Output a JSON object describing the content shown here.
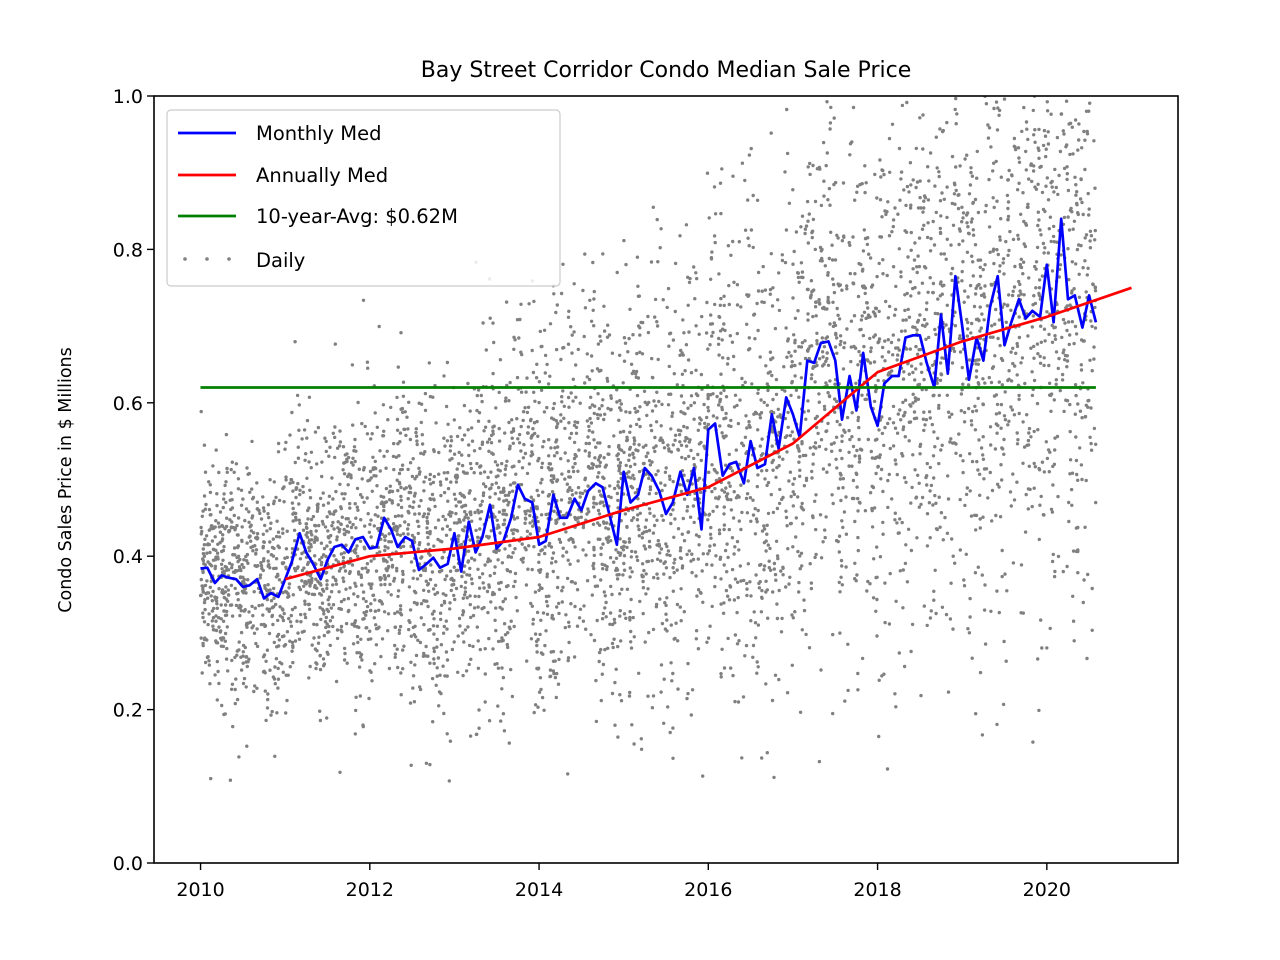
{
  "chart_data": {
    "type": "line",
    "title": "Bay Street Corridor Condo Median Sale Price",
    "xlabel": "",
    "ylabel": "Condo Sales Price in $ Millions",
    "xlim": [
      2009.45,
      2021.55
    ],
    "ylim": [
      0.0,
      1.0
    ],
    "x_ticks": [
      "2010",
      "2012",
      "2014",
      "2016",
      "2018",
      "2020"
    ],
    "y_ticks": [
      "0.0",
      "0.2",
      "0.4",
      "0.6",
      "0.8",
      "1.0"
    ],
    "grid": false,
    "legend_position": "upper-left",
    "colors": {
      "monthly": "#0000ff",
      "annual": "#ff0000",
      "average": "#008000",
      "daily": "#808080"
    },
    "legend": [
      {
        "label": "Monthly Med",
        "color": "#0000ff",
        "kind": "line"
      },
      {
        "label": "Annually Med",
        "color": "#ff0000",
        "kind": "line"
      },
      {
        "label": "10-year-Avg: $0.62M",
        "color": "#008000",
        "kind": "line"
      },
      {
        "label": "Daily",
        "color": "#808080",
        "kind": "dots"
      }
    ],
    "series": [
      {
        "name": "Monthly Med",
        "x": [
          2010.0,
          2010.08,
          2010.17,
          2010.25,
          2010.33,
          2010.42,
          2010.5,
          2010.58,
          2010.67,
          2010.75,
          2010.83,
          2010.92,
          2011.0,
          2011.08,
          2011.17,
          2011.25,
          2011.33,
          2011.42,
          2011.5,
          2011.58,
          2011.67,
          2011.75,
          2011.83,
          2011.92,
          2012.0,
          2012.08,
          2012.17,
          2012.25,
          2012.33,
          2012.42,
          2012.5,
          2012.58,
          2012.67,
          2012.75,
          2012.83,
          2012.92,
          2013.0,
          2013.08,
          2013.17,
          2013.25,
          2013.33,
          2013.42,
          2013.5,
          2013.58,
          2013.67,
          2013.75,
          2013.83,
          2013.92,
          2014.0,
          2014.08,
          2014.17,
          2014.25,
          2014.33,
          2014.42,
          2014.5,
          2014.58,
          2014.67,
          2014.75,
          2014.83,
          2014.92,
          2015.0,
          2015.08,
          2015.17,
          2015.25,
          2015.33,
          2015.42,
          2015.5,
          2015.58,
          2015.67,
          2015.75,
          2015.83,
          2015.92,
          2016.0,
          2016.08,
          2016.17,
          2016.25,
          2016.33,
          2016.42,
          2016.5,
          2016.58,
          2016.67,
          2016.75,
          2016.83,
          2016.92,
          2017.0,
          2017.08,
          2017.17,
          2017.25,
          2017.33,
          2017.42,
          2017.5,
          2017.58,
          2017.67,
          2017.75,
          2017.83,
          2017.92,
          2018.0,
          2018.08,
          2018.17,
          2018.25,
          2018.33,
          2018.42,
          2018.5,
          2018.58,
          2018.67,
          2018.75,
          2018.83,
          2018.92,
          2019.0,
          2019.08,
          2019.17,
          2019.25,
          2019.33,
          2019.42,
          2019.5,
          2019.58,
          2019.67,
          2019.75,
          2019.83,
          2019.92,
          2020.0,
          2020.08,
          2020.17,
          2020.25,
          2020.33,
          2020.42,
          2020.5,
          2020.58
        ],
        "values": [
          0.384,
          0.385,
          0.365,
          0.375,
          0.372,
          0.37,
          0.36,
          0.362,
          0.37,
          0.345,
          0.352,
          0.347,
          0.37,
          0.393,
          0.43,
          0.405,
          0.39,
          0.37,
          0.395,
          0.412,
          0.415,
          0.405,
          0.422,
          0.425,
          0.41,
          0.412,
          0.45,
          0.435,
          0.412,
          0.425,
          0.42,
          0.382,
          0.39,
          0.398,
          0.385,
          0.39,
          0.43,
          0.38,
          0.445,
          0.405,
          0.425,
          0.467,
          0.41,
          0.42,
          0.45,
          0.493,
          0.475,
          0.47,
          0.415,
          0.42,
          0.48,
          0.45,
          0.45,
          0.475,
          0.46,
          0.485,
          0.495,
          0.49,
          0.455,
          0.415,
          0.51,
          0.47,
          0.48,
          0.515,
          0.505,
          0.485,
          0.455,
          0.47,
          0.51,
          0.48,
          0.515,
          0.435,
          0.565,
          0.573,
          0.505,
          0.52,
          0.523,
          0.495,
          0.55,
          0.515,
          0.52,
          0.585,
          0.54,
          0.607,
          0.585,
          0.555,
          0.655,
          0.652,
          0.678,
          0.68,
          0.655,
          0.578,
          0.635,
          0.59,
          0.665,
          0.595,
          0.57,
          0.625,
          0.635,
          0.635,
          0.685,
          0.688,
          0.688,
          0.652,
          0.62,
          0.715,
          0.638,
          0.765,
          0.7,
          0.63,
          0.685,
          0.655,
          0.725,
          0.765,
          0.675,
          0.705,
          0.735,
          0.71,
          0.72,
          0.712,
          0.78,
          0.705,
          0.84,
          0.735,
          0.74,
          0.698,
          0.74,
          0.705
        ]
      },
      {
        "name": "Annually Med",
        "x": [
          2011.0,
          2012.0,
          2013.0,
          2014.0,
          2015.0,
          2016.0,
          2017.0,
          2018.0,
          2019.0,
          2020.0,
          2021.0
        ],
        "values": [
          0.37,
          0.4,
          0.41,
          0.425,
          0.46,
          0.49,
          0.547,
          0.64,
          0.68,
          0.712,
          0.75
        ]
      },
      {
        "name": "10-year-Avg: $0.62M",
        "x": [
          2010.0,
          2020.58
        ],
        "values": [
          0.62,
          0.62
        ]
      }
    ],
    "daily_scatter": {
      "name": "Daily",
      "approx_points_per_year": 520,
      "x_range": [
        2010.0,
        2020.58
      ],
      "cloud_center_trend": "follows Monthly Med",
      "spread_increases_over_time": true
    }
  }
}
